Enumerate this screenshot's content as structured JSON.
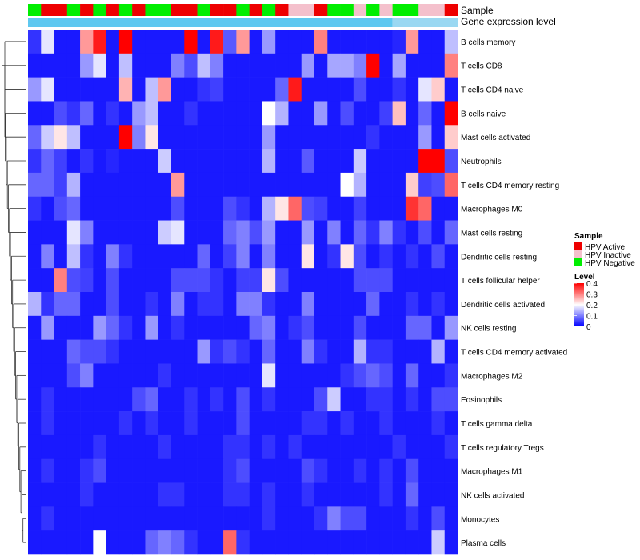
{
  "chart_data": {
    "type": "heatmap",
    "annotation_titles": {
      "sample": "Sample",
      "gene_expression": "Gene expression level"
    },
    "legend": {
      "sample_title": "Sample",
      "sample_entries": [
        {
          "label": "HPV Active",
          "color": "#ee0000"
        },
        {
          "label": "HPV Inactive",
          "color": "#f4c0cc"
        },
        {
          "label": "HPV Negative",
          "color": "#00ee00"
        }
      ],
      "level_title": "Level",
      "level_ticks": [
        "0.4",
        "0.3",
        "0.2",
        "0.1",
        "0"
      ],
      "level_range": [
        0,
        0.4
      ]
    },
    "column_samples": [
      "N",
      "A",
      "A",
      "N",
      "A",
      "N",
      "A",
      "N",
      "A",
      "N",
      "N",
      "A",
      "A",
      "N",
      "A",
      "A",
      "N",
      "A",
      "N",
      "A",
      "I",
      "I",
      "A",
      "N",
      "N",
      "I",
      "N",
      "I",
      "N",
      "N",
      "I",
      "I",
      "A"
    ],
    "gene_expression_bar": {
      "colors": [
        "#5ec8f0",
        "#9ad8f2"
      ],
      "split_after_column": 28
    },
    "rows": [
      {
        "label": "B cells memory",
        "values": [
          0.04,
          0.18,
          0.02,
          0.02,
          0.28,
          0.38,
          0.02,
          0.4,
          0.02,
          0.02,
          0.02,
          0.02,
          0.4,
          0.02,
          0.38,
          0.07,
          0.28,
          0.02,
          0.12,
          0.02,
          0.02,
          0.02,
          0.3,
          0.02,
          0.02,
          0.02,
          0.02,
          0.02,
          0.03,
          0.28,
          0.02,
          0.02,
          0.15
        ]
      },
      {
        "label": "T cells CD8",
        "values": [
          0.02,
          0.02,
          0.02,
          0.02,
          0.12,
          0.18,
          0.02,
          0.15,
          0.02,
          0.02,
          0.02,
          0.1,
          0.06,
          0.15,
          0.1,
          0.02,
          0.02,
          0.02,
          0.02,
          0.02,
          0.02,
          0.12,
          0.02,
          0.13,
          0.13,
          0.1,
          0.4,
          0.02,
          0.13,
          0.02,
          0.02,
          0.02,
          0.3
        ]
      },
      {
        "label": "T cells CD4 naive",
        "values": [
          0.12,
          0.18,
          0.02,
          0.02,
          0.02,
          0.02,
          0.02,
          0.26,
          0.02,
          0.15,
          0.28,
          0.02,
          0.02,
          0.04,
          0.05,
          0.02,
          0.02,
          0.02,
          0.02,
          0.08,
          0.38,
          0.02,
          0.02,
          0.02,
          0.02,
          0.06,
          0.02,
          0.02,
          0.04,
          0.02,
          0.18,
          0.24,
          0.02
        ]
      },
      {
        "label": "B cells naive",
        "values": [
          0.02,
          0.02,
          0.06,
          0.04,
          0.08,
          0.02,
          0.04,
          0.02,
          0.12,
          0.15,
          0.02,
          0.02,
          0.04,
          0.02,
          0.02,
          0.02,
          0.02,
          0.02,
          0.2,
          0.14,
          0.02,
          0.02,
          0.12,
          0.02,
          0.06,
          0.02,
          0.02,
          0.05,
          0.25,
          0.02,
          0.08,
          0.02,
          0.4
        ]
      },
      {
        "label": "Mast cells activated",
        "values": [
          0.08,
          0.16,
          0.22,
          0.15,
          0.02,
          0.02,
          0.02,
          0.4,
          0.1,
          0.22,
          0.02,
          0.02,
          0.02,
          0.02,
          0.02,
          0.02,
          0.02,
          0.02,
          0.12,
          0.02,
          0.02,
          0.02,
          0.02,
          0.02,
          0.02,
          0.02,
          0.04,
          0.02,
          0.02,
          0.02,
          0.12,
          0.02,
          0.24
        ]
      },
      {
        "label": "Neutrophils",
        "values": [
          0.04,
          0.08,
          0.05,
          0.02,
          0.04,
          0.02,
          0.03,
          0.02,
          0.02,
          0.02,
          0.16,
          0.02,
          0.02,
          0.02,
          0.02,
          0.02,
          0.02,
          0.02,
          0.14,
          0.02,
          0.02,
          0.07,
          0.02,
          0.02,
          0.02,
          0.16,
          0.02,
          0.02,
          0.02,
          0.02,
          0.4,
          0.4,
          0.06
        ]
      },
      {
        "label": "T cells CD4 memory resting",
        "values": [
          0.08,
          0.08,
          0.05,
          0.14,
          0.02,
          0.02,
          0.02,
          0.02,
          0.02,
          0.02,
          0.02,
          0.28,
          0.02,
          0.02,
          0.02,
          0.02,
          0.02,
          0.02,
          0.02,
          0.02,
          0.02,
          0.02,
          0.02,
          0.02,
          0.2,
          0.14,
          0.02,
          0.02,
          0.02,
          0.24,
          0.05,
          0.06,
          0.32
        ]
      },
      {
        "label": "Macrophages M0",
        "values": [
          0.04,
          0.02,
          0.06,
          0.08,
          0.02,
          0.02,
          0.02,
          0.02,
          0.02,
          0.02,
          0.02,
          0.06,
          0.02,
          0.02,
          0.02,
          0.06,
          0.04,
          0.02,
          0.14,
          0.22,
          0.32,
          0.06,
          0.05,
          0.02,
          0.02,
          0.05,
          0.02,
          0.02,
          0.02,
          0.36,
          0.32,
          0.02,
          0.02
        ]
      },
      {
        "label": "Mast cells resting",
        "values": [
          0.02,
          0.02,
          0.02,
          0.18,
          0.1,
          0.02,
          0.02,
          0.02,
          0.02,
          0.02,
          0.16,
          0.18,
          0.02,
          0.02,
          0.02,
          0.08,
          0.1,
          0.06,
          0.12,
          0.02,
          0.02,
          0.12,
          0.02,
          0.1,
          0.02,
          0.08,
          0.04,
          0.1,
          0.04,
          0.02,
          0.06,
          0.02,
          0.08
        ]
      },
      {
        "label": "Dendritic cells resting",
        "values": [
          0.02,
          0.1,
          0.02,
          0.15,
          0.04,
          0.02,
          0.1,
          0.04,
          0.02,
          0.02,
          0.02,
          0.02,
          0.02,
          0.08,
          0.02,
          0.05,
          0.1,
          0.02,
          0.1,
          0.02,
          0.02,
          0.22,
          0.02,
          0.04,
          0.22,
          0.06,
          0.02,
          0.04,
          0.02,
          0.04,
          0.02,
          0.06,
          0.02
        ]
      },
      {
        "label": "T cells follicular helper",
        "values": [
          0.02,
          0.02,
          0.3,
          0.06,
          0.05,
          0.02,
          0.06,
          0.02,
          0.02,
          0.02,
          0.02,
          0.06,
          0.06,
          0.06,
          0.04,
          0.02,
          0.05,
          0.05,
          0.22,
          0.06,
          0.02,
          0.02,
          0.02,
          0.02,
          0.02,
          0.06,
          0.06,
          0.06,
          0.02,
          0.02,
          0.02,
          0.02,
          0.02
        ]
      },
      {
        "label": "Dendritic cells activated",
        "values": [
          0.14,
          0.04,
          0.08,
          0.08,
          0.02,
          0.02,
          0.06,
          0.02,
          0.02,
          0.04,
          0.02,
          0.1,
          0.02,
          0.04,
          0.04,
          0.02,
          0.1,
          0.1,
          0.04,
          0.02,
          0.02,
          0.1,
          0.02,
          0.02,
          0.02,
          0.02,
          0.08,
          0.02,
          0.02,
          0.04,
          0.02,
          0.04,
          0.02
        ]
      },
      {
        "label": "NK cells resting",
        "values": [
          0.02,
          0.12,
          0.02,
          0.02,
          0.02,
          0.12,
          0.08,
          0.04,
          0.02,
          0.12,
          0.02,
          0.04,
          0.02,
          0.02,
          0.02,
          0.02,
          0.02,
          0.08,
          0.1,
          0.02,
          0.04,
          0.06,
          0.02,
          0.02,
          0.02,
          0.06,
          0.02,
          0.02,
          0.02,
          0.08,
          0.08,
          0.02,
          0.12
        ]
      },
      {
        "label": "T cells CD4 memory activated",
        "values": [
          0.02,
          0.02,
          0.02,
          0.08,
          0.06,
          0.06,
          0.04,
          0.02,
          0.02,
          0.02,
          0.02,
          0.02,
          0.02,
          0.12,
          0.04,
          0.06,
          0.04,
          0.02,
          0.08,
          0.02,
          0.02,
          0.1,
          0.04,
          0.02,
          0.02,
          0.14,
          0.04,
          0.04,
          0.02,
          0.02,
          0.02,
          0.14,
          0.02
        ]
      },
      {
        "label": "Macrophages M2",
        "values": [
          0.02,
          0.02,
          0.02,
          0.06,
          0.1,
          0.02,
          0.02,
          0.02,
          0.02,
          0.02,
          0.04,
          0.02,
          0.02,
          0.02,
          0.02,
          0.02,
          0.02,
          0.02,
          0.18,
          0.02,
          0.02,
          0.02,
          0.02,
          0.02,
          0.04,
          0.06,
          0.08,
          0.06,
          0.02,
          0.08,
          0.02,
          0.02,
          0.04
        ]
      },
      {
        "label": "Eosinophils",
        "values": [
          0.02,
          0.04,
          0.02,
          0.02,
          0.02,
          0.02,
          0.02,
          0.02,
          0.06,
          0.08,
          0.02,
          0.02,
          0.04,
          0.02,
          0.04,
          0.02,
          0.06,
          0.02,
          0.04,
          0.02,
          0.02,
          0.02,
          0.06,
          0.16,
          0.02,
          0.02,
          0.04,
          0.04,
          0.02,
          0.04,
          0.02,
          0.06,
          0.06
        ]
      },
      {
        "label": "T cells gamma delta",
        "values": [
          0.02,
          0.04,
          0.02,
          0.02,
          0.02,
          0.02,
          0.02,
          0.04,
          0.02,
          0.04,
          0.02,
          0.02,
          0.04,
          0.02,
          0.02,
          0.02,
          0.06,
          0.02,
          0.02,
          0.02,
          0.02,
          0.04,
          0.04,
          0.02,
          0.04,
          0.02,
          0.02,
          0.04,
          0.02,
          0.02,
          0.02,
          0.04,
          0.02
        ]
      },
      {
        "label": "T cells regulatory  Tregs",
        "values": [
          0.02,
          0.02,
          0.02,
          0.02,
          0.02,
          0.04,
          0.02,
          0.02,
          0.02,
          0.02,
          0.04,
          0.02,
          0.02,
          0.02,
          0.02,
          0.04,
          0.04,
          0.02,
          0.04,
          0.02,
          0.04,
          0.02,
          0.02,
          0.02,
          0.02,
          0.02,
          0.02,
          0.02,
          0.04,
          0.02,
          0.02,
          0.02,
          0.04
        ]
      },
      {
        "label": "Macrophages M1",
        "values": [
          0.02,
          0.04,
          0.02,
          0.02,
          0.04,
          0.06,
          0.02,
          0.02,
          0.02,
          0.02,
          0.02,
          0.02,
          0.02,
          0.02,
          0.02,
          0.04,
          0.06,
          0.02,
          0.02,
          0.02,
          0.02,
          0.06,
          0.04,
          0.02,
          0.02,
          0.04,
          0.02,
          0.04,
          0.02,
          0.06,
          0.02,
          0.02,
          0.02
        ]
      },
      {
        "label": "NK cells activated",
        "values": [
          0.02,
          0.02,
          0.02,
          0.02,
          0.04,
          0.02,
          0.02,
          0.02,
          0.02,
          0.02,
          0.04,
          0.04,
          0.02,
          0.02,
          0.02,
          0.04,
          0.04,
          0.02,
          0.04,
          0.02,
          0.02,
          0.04,
          0.02,
          0.02,
          0.02,
          0.02,
          0.02,
          0.04,
          0.02,
          0.08,
          0.02,
          0.02,
          0.02
        ]
      },
      {
        "label": "Monocytes",
        "values": [
          0.02,
          0.04,
          0.02,
          0.02,
          0.02,
          0.02,
          0.02,
          0.02,
          0.02,
          0.02,
          0.02,
          0.02,
          0.02,
          0.02,
          0.02,
          0.02,
          0.02,
          0.02,
          0.04,
          0.02,
          0.02,
          0.02,
          0.04,
          0.1,
          0.06,
          0.06,
          0.02,
          0.02,
          0.02,
          0.04,
          0.02,
          0.06,
          0.02
        ]
      },
      {
        "label": "Plasma cells",
        "values": [
          0.02,
          0.02,
          0.02,
          0.02,
          0.02,
          0.2,
          0.02,
          0.02,
          0.02,
          0.08,
          0.1,
          0.08,
          0.04,
          0.02,
          0.02,
          0.32,
          0.04,
          0.02,
          0.02,
          0.02,
          0.02,
          0.02,
          0.02,
          0.02,
          0.02,
          0.02,
          0.02,
          0.02,
          0.02,
          0.02,
          0.02,
          0.16,
          0.02
        ]
      }
    ]
  }
}
